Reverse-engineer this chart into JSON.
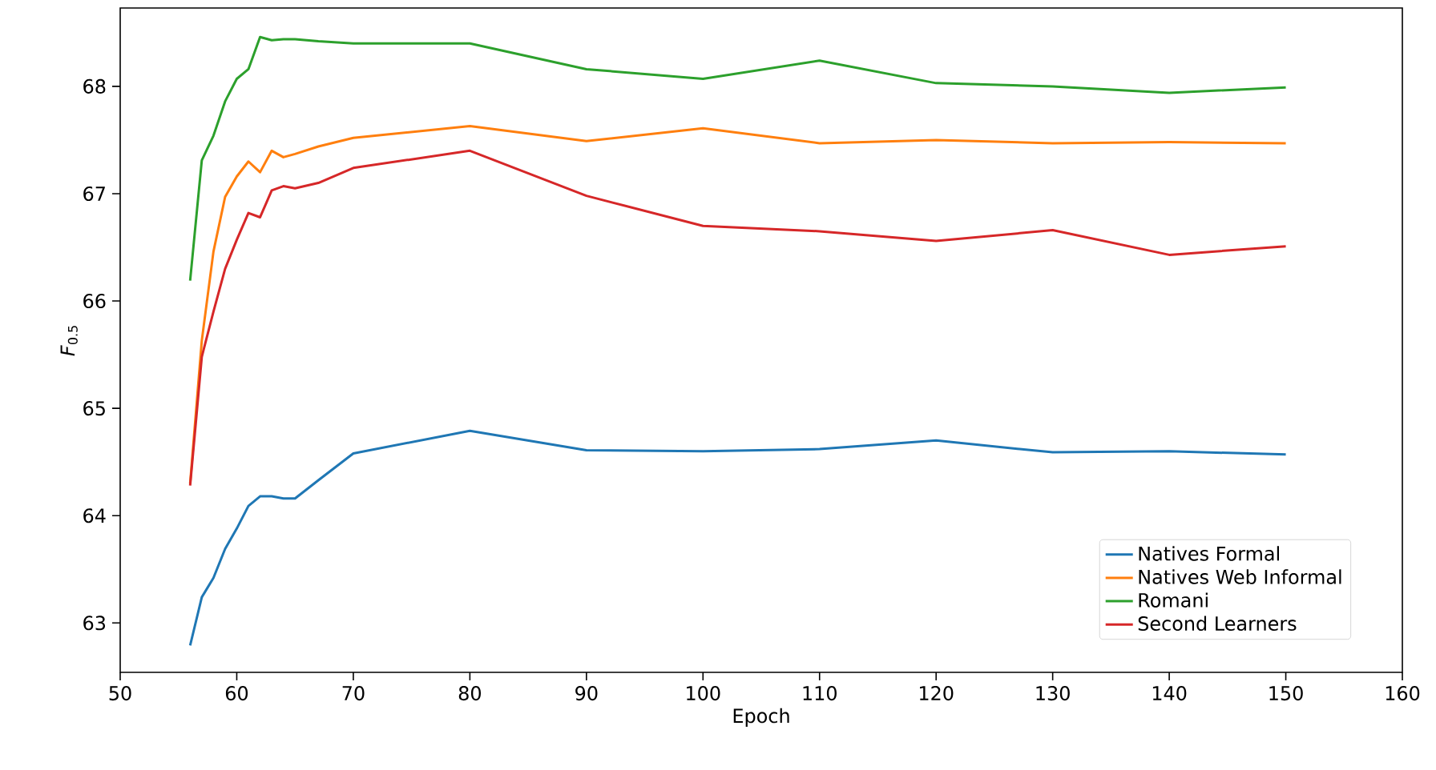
{
  "chart_data": {
    "type": "line",
    "xlabel": "Epoch",
    "ylabel": "*F*$_{0.5}$",
    "x": [
      56,
      57,
      58,
      59,
      60,
      61,
      62,
      63,
      64,
      65,
      67,
      70,
      80,
      90,
      100,
      110,
      120,
      130,
      140,
      150
    ],
    "series": [
      {
        "name": "Natives Formal",
        "color": "#1f77b4",
        "values": [
          62.79,
          63.24,
          63.42,
          63.69,
          63.88,
          64.09,
          64.18,
          64.18,
          64.16,
          64.16,
          64.33,
          64.58,
          64.79,
          64.61,
          64.6,
          64.62,
          64.7,
          64.59,
          64.6,
          64.57
        ]
      },
      {
        "name": "Natives Web Informal",
        "color": "#ff7f0e",
        "values": [
          64.3,
          65.63,
          66.46,
          66.97,
          67.16,
          67.3,
          67.2,
          67.4,
          67.34,
          67.37,
          67.44,
          67.52,
          67.63,
          67.49,
          67.61,
          67.47,
          67.5,
          67.47,
          67.48,
          67.47
        ]
      },
      {
        "name": "Romani",
        "color": "#2ca02c",
        "values": [
          66.19,
          67.31,
          67.54,
          67.86,
          68.07,
          68.16,
          68.46,
          68.43,
          68.44,
          68.44,
          68.42,
          68.4,
          68.4,
          68.16,
          68.07,
          68.24,
          68.03,
          68.0,
          67.94,
          67.99
        ]
      },
      {
        "name": "Second Learners",
        "color": "#d62728",
        "values": [
          64.28,
          65.48,
          65.9,
          66.3,
          66.57,
          66.82,
          66.78,
          67.03,
          67.07,
          67.05,
          67.1,
          67.24,
          67.4,
          66.98,
          66.7,
          66.65,
          66.56,
          66.66,
          66.43,
          66.51
        ]
      }
    ],
    "xlim": [
      50,
      160
    ],
    "ylim": [
      62.54,
      68.73
    ],
    "xticks": [
      50,
      60,
      70,
      80,
      90,
      100,
      110,
      120,
      130,
      140,
      150,
      160
    ],
    "yticks": [
      63,
      64,
      65,
      66,
      67,
      68
    ],
    "grid": false,
    "legend": "bottom right",
    "marker": "none",
    "line_style": "solid"
  }
}
